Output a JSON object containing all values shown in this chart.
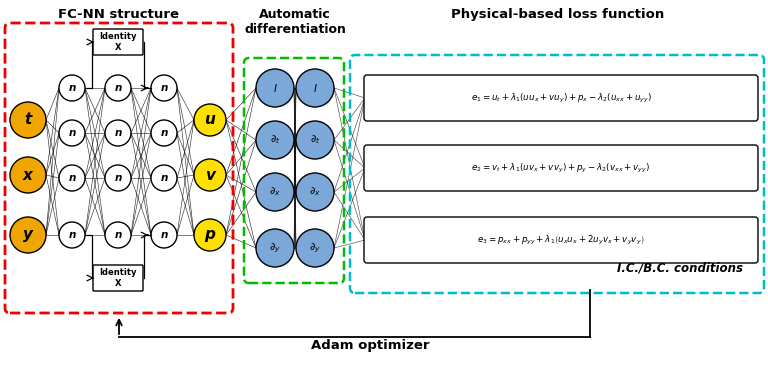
{
  "title": "FC-NN structure",
  "auto_diff_title": "Automatic\ndifferentiation",
  "loss_title": "Physical-based loss function",
  "input_labels": [
    "t",
    "x",
    "y"
  ],
  "output_labels": [
    "u",
    "v",
    "p"
  ],
  "ic_bc_label": "I.C./B.C. conditions",
  "adam_label": "Adam optimizer",
  "input_color": "#F0A500",
  "output_color": "#FFE000",
  "hidden_color": "#FFFFFF",
  "auto_diff_color": "#7BA8D8",
  "red_dashed_color": "#EE0000",
  "green_dashed_color": "#00BB00",
  "cyan_dashed_color": "#00BBCC",
  "background_color": "#FFFFFF",
  "eq1": "$e_1 = u_t + \\lambda_1\\left(uu_x + vu_y\\right) + p_x - \\lambda_2\\left(u_{xx} + u_{yy}\\right)$",
  "eq2": "$e_2 = v_t + \\lambda_1\\left(uv_x + vv_y\\right) + p_y - \\lambda_2\\left(v_{xx} + v_{yy}\\right)$",
  "eq3": "$e_3 = p_{xx} + p_{yy} + \\lambda_1\\left(u_xu_x + 2u_yv_x + v_yv_y\\right)$",
  "fig_w": 7.68,
  "fig_h": 3.69,
  "dpi": 100
}
